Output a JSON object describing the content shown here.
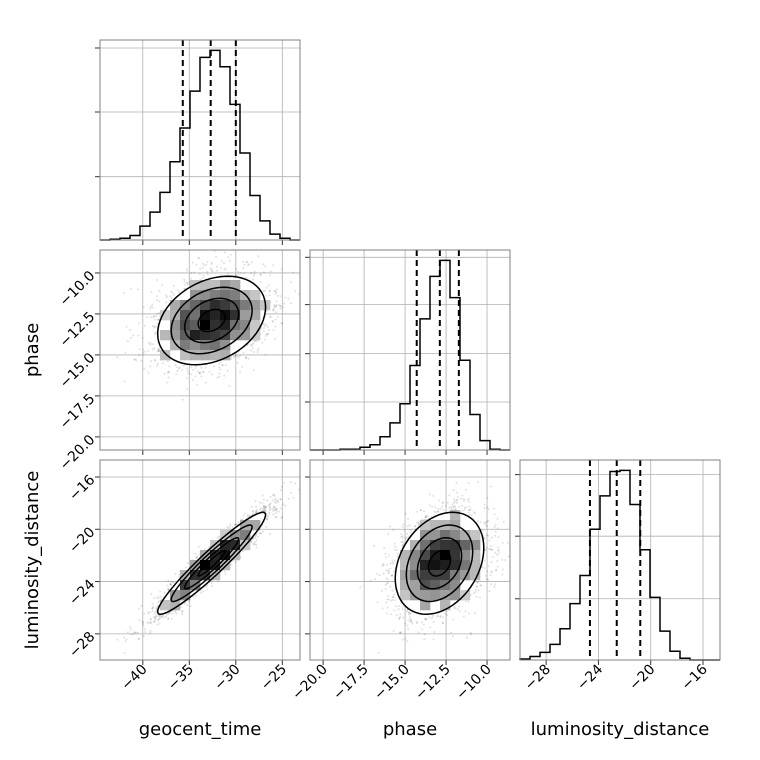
{
  "chart_data": {
    "type": "corner",
    "title": "",
    "parameters": [
      {
        "name": "geocent_time",
        "label": "geocent_time",
        "range": [
          -44.6,
          -23.1
        ],
        "ticks": [
          -40,
          -35,
          -30,
          -25
        ],
        "tick_labels": [
          "−40",
          "−35",
          "−30",
          "−25"
        ],
        "quantiles": [
          -35.7,
          -32.7,
          -30.0
        ],
        "hist_counts": [
          0,
          2,
          5,
          13,
          40,
          80,
          137,
          225,
          322,
          428,
          525,
          545,
          498,
          390,
          250,
          128,
          55,
          17,
          5,
          0
        ],
        "hist_yticks": [
          182,
          368,
          552
        ],
        "hist_ymax": 575,
        "mean": -32.6,
        "sd": 2.9
      },
      {
        "name": "phase",
        "label": "phase",
        "range": [
          -20.8,
          -8.6
        ],
        "ticks": [
          -20.0,
          -17.5,
          -15.0,
          -12.5,
          -10.0
        ],
        "tick_labels": [
          "−20.0",
          "−17.5",
          "−15.0",
          "−12.5",
          "−10.0"
        ],
        "quantiles": [
          -14.29,
          -12.88,
          -11.72
        ],
        "hist_counts": [
          0,
          0,
          0,
          2,
          2,
          8,
          15,
          38,
          78,
          133,
          243,
          377,
          499,
          545,
          438,
          258,
          102,
          27,
          2,
          0
        ],
        "hist_yticks": [
          138,
          277,
          418,
          554
        ],
        "hist_ymax": 575,
        "mean": -12.9,
        "sd": 1.35
      },
      {
        "name": "luminosity_distance",
        "label": "luminosity_distance",
        "range": [
          -30.0,
          -14.7
        ],
        "ticks": [
          -28,
          -24,
          -20,
          -16
        ],
        "tick_labels": [
          "−28",
          "−24",
          "−20",
          "−16"
        ],
        "quantiles": [
          -24.65,
          -22.6,
          -20.8
        ],
        "hist_counts": [
          3,
          10,
          22,
          45,
          90,
          162,
          243,
          376,
          472,
          542,
          545,
          447,
          317,
          180,
          83,
          25,
          5,
          0,
          0,
          0
        ],
        "hist_yticks": [
          176,
          356,
          533
        ],
        "hist_ymax": 575,
        "mean": -22.6,
        "sd": 1.95
      }
    ],
    "correlation": [
      [
        1,
        0.3,
        0.95
      ],
      [
        0.3,
        1,
        0.3
      ],
      [
        0.95,
        0.3,
        1
      ]
    ],
    "n_samples": 3000,
    "contour_sigma_levels": [
      0.5,
      1,
      1.5,
      2
    ],
    "quantile_levels": [
      0.16,
      0.5,
      0.84
    ],
    "grid": true
  }
}
